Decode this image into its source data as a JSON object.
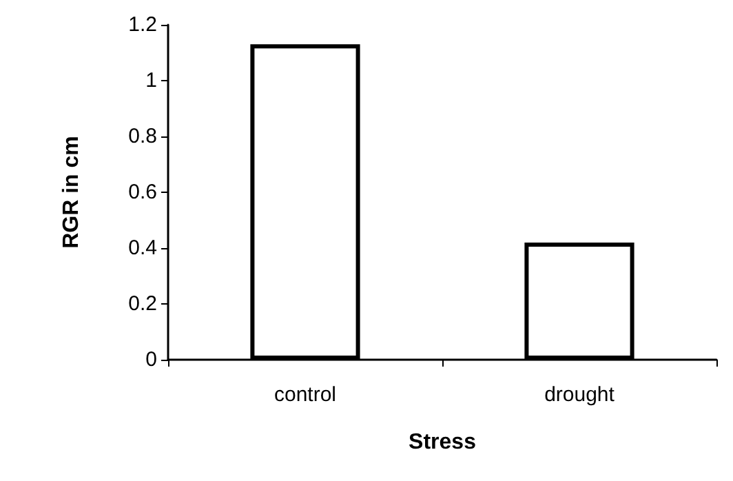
{
  "chart_data": {
    "type": "bar",
    "xlabel": "Stress",
    "ylabel": "RGR in cm",
    "categories": [
      "control",
      "drought"
    ],
    "series": [
      {
        "color": "#ffffff",
        "values": [
          1.13,
          0.42
        ]
      }
    ],
    "ylim": [
      0,
      1.2
    ],
    "yticks": [
      0,
      0.2,
      0.4,
      0.6,
      0.8,
      1,
      1.2
    ],
    "grid": false
  }
}
